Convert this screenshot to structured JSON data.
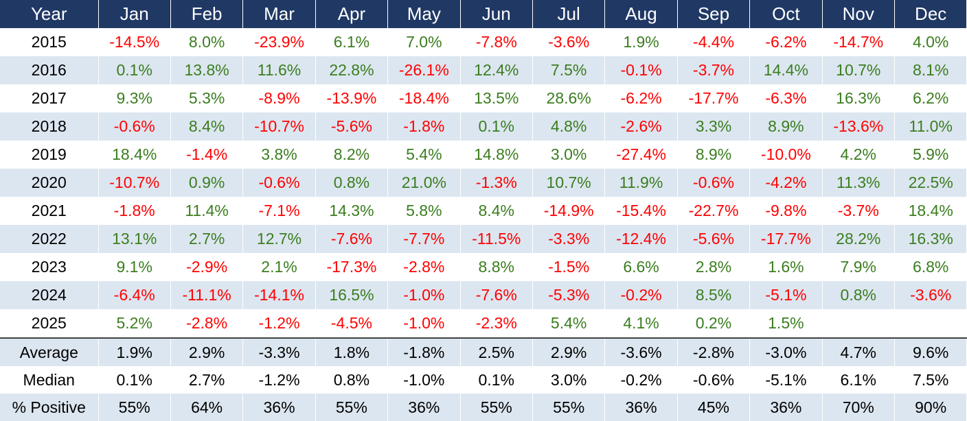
{
  "table": {
    "header": [
      "Year",
      "Jan",
      "Feb",
      "Mar",
      "Apr",
      "May",
      "Jun",
      "Jul",
      "Aug",
      "Sep",
      "Oct",
      "Nov",
      "Dec"
    ],
    "rows": [
      [
        "2015",
        "-14.5%",
        "8.0%",
        "-23.9%",
        "6.1%",
        "7.0%",
        "-7.8%",
        "-3.6%",
        "1.9%",
        "-4.4%",
        "-6.2%",
        "-14.7%",
        "4.0%"
      ],
      [
        "2016",
        "0.1%",
        "13.8%",
        "11.6%",
        "22.8%",
        "-26.1%",
        "12.4%",
        "7.5%",
        "-0.1%",
        "-3.7%",
        "14.4%",
        "10.7%",
        "8.1%"
      ],
      [
        "2017",
        "9.3%",
        "5.3%",
        "-8.9%",
        "-13.9%",
        "-18.4%",
        "13.5%",
        "28.6%",
        "-6.2%",
        "-17.7%",
        "-6.3%",
        "16.3%",
        "6.2%"
      ],
      [
        "2018",
        "-0.6%",
        "8.4%",
        "-10.7%",
        "-5.6%",
        "-1.8%",
        "0.1%",
        "4.8%",
        "-2.6%",
        "3.3%",
        "8.9%",
        "-13.6%",
        "11.0%"
      ],
      [
        "2019",
        "18.4%",
        "-1.4%",
        "3.8%",
        "8.2%",
        "5.4%",
        "14.8%",
        "3.0%",
        "-27.4%",
        "8.9%",
        "-10.0%",
        "4.2%",
        "5.9%"
      ],
      [
        "2020",
        "-10.7%",
        "0.9%",
        "-0.6%",
        "0.8%",
        "21.0%",
        "-1.3%",
        "10.7%",
        "11.9%",
        "-0.6%",
        "-4.2%",
        "11.3%",
        "22.5%"
      ],
      [
        "2021",
        "-1.8%",
        "11.4%",
        "-7.1%",
        "14.3%",
        "5.8%",
        "8.4%",
        "-14.9%",
        "-15.4%",
        "-22.7%",
        "-9.8%",
        "-3.7%",
        "18.4%"
      ],
      [
        "2022",
        "13.1%",
        "2.7%",
        "12.7%",
        "-7.6%",
        "-7.7%",
        "-11.5%",
        "-3.3%",
        "-12.4%",
        "-5.6%",
        "-17.7%",
        "28.2%",
        "16.3%"
      ],
      [
        "2023",
        "9.1%",
        "-2.9%",
        "2.1%",
        "-17.3%",
        "-2.8%",
        "8.8%",
        "-1.5%",
        "6.6%",
        "2.8%",
        "1.6%",
        "7.9%",
        "6.8%"
      ],
      [
        "2024",
        "-6.4%",
        "-11.1%",
        "-14.1%",
        "16.5%",
        "-1.0%",
        "-7.6%",
        "-5.3%",
        "-0.2%",
        "8.5%",
        "-5.1%",
        "0.8%",
        "-3.6%"
      ],
      [
        "2025",
        "5.2%",
        "-2.8%",
        "-1.2%",
        "-4.5%",
        "-1.0%",
        "-2.3%",
        "5.4%",
        "4.1%",
        "0.2%",
        "1.5%",
        null,
        null
      ]
    ],
    "summary": [
      [
        "Average",
        "1.9%",
        "2.9%",
        "-3.3%",
        "1.8%",
        "-1.8%",
        "2.5%",
        "2.9%",
        "-3.6%",
        "-2.8%",
        "-3.0%",
        "4.7%",
        "9.6%"
      ],
      [
        "Median",
        "0.1%",
        "2.7%",
        "-1.2%",
        "0.8%",
        "-1.0%",
        "0.1%",
        "3.0%",
        "-0.2%",
        "-0.6%",
        "-5.1%",
        "6.1%",
        "7.5%"
      ],
      [
        "% Positive",
        "55%",
        "64%",
        "36%",
        "55%",
        "36%",
        "55%",
        "55%",
        "36%",
        "45%",
        "36%",
        "70%",
        "90%"
      ]
    ]
  }
}
